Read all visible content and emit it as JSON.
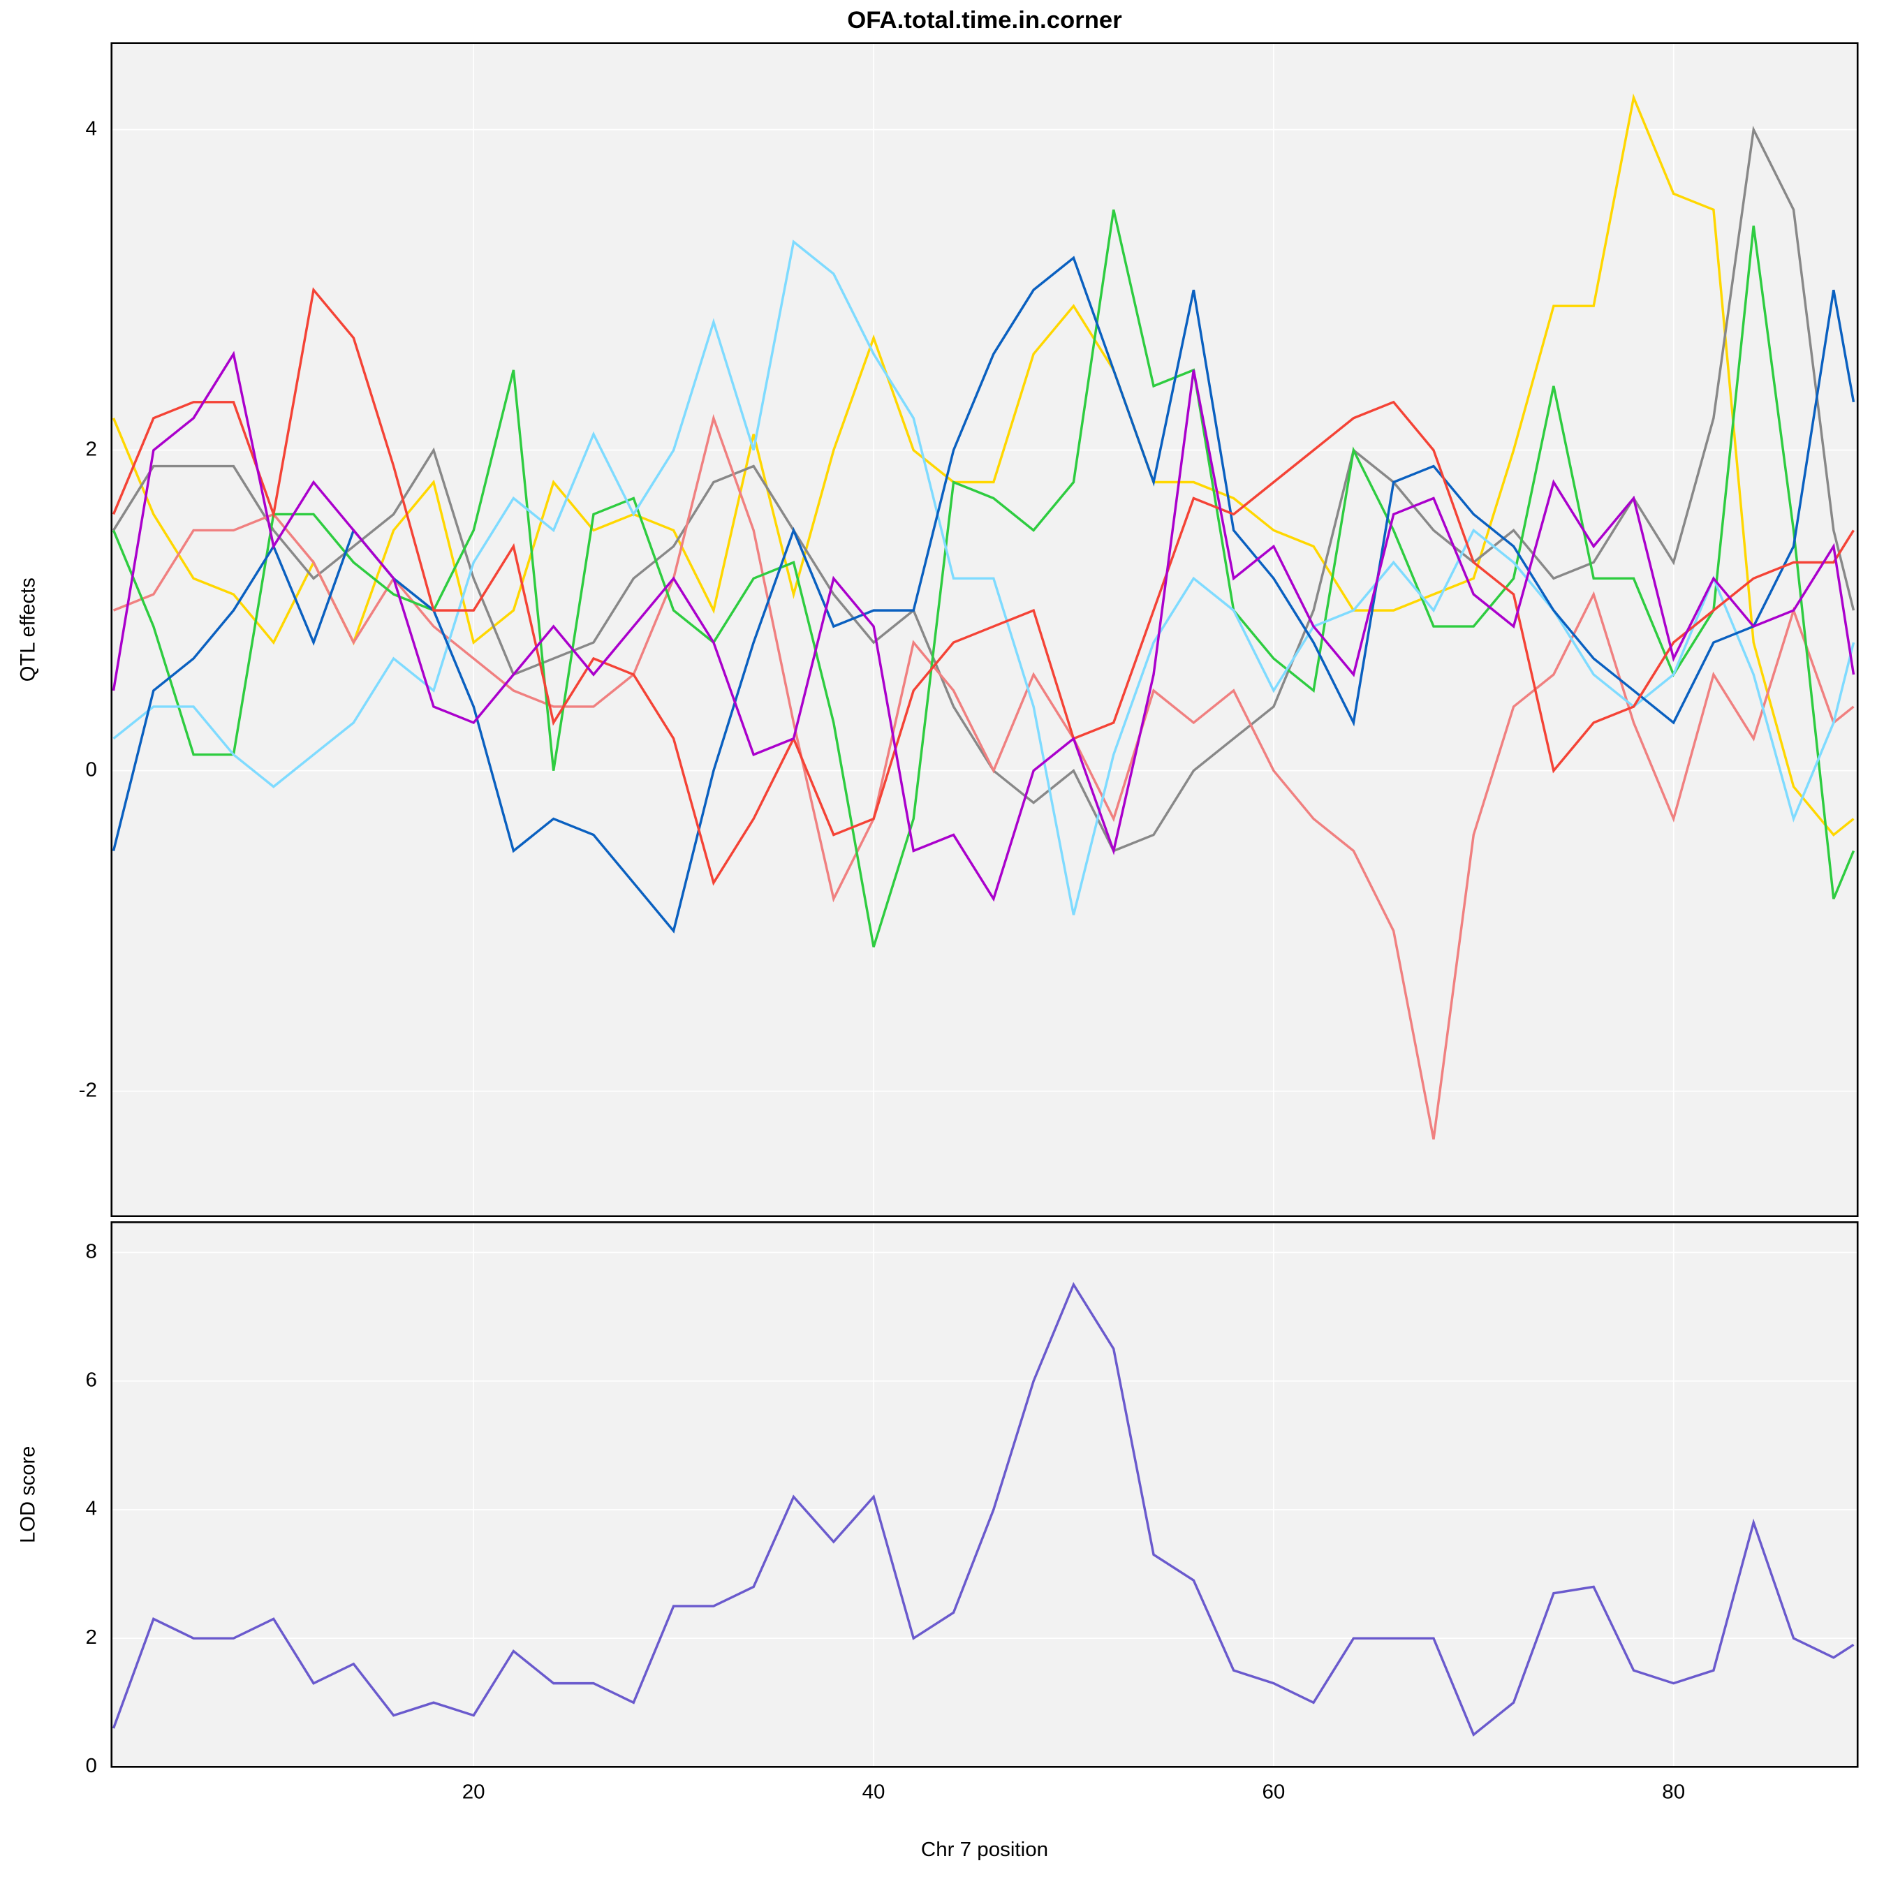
{
  "chart_data": [
    {
      "type": "line",
      "title": "OFA.total.time.in.corner",
      "y_label": "QTL effects",
      "x": [
        2,
        4,
        6,
        8,
        10,
        12,
        14,
        16,
        18,
        20,
        22,
        24,
        26,
        28,
        30,
        32,
        34,
        36,
        38,
        40,
        42,
        44,
        46,
        48,
        50,
        52,
        54,
        56,
        58,
        60,
        62,
        64,
        66,
        68,
        70,
        72,
        74,
        76,
        78,
        80,
        82,
        84,
        86,
        88,
        89
      ],
      "series": [
        {
          "color": "#ffd700",
          "values": [
            2.2,
            1.6,
            1.2,
            1.1,
            0.8,
            1.3,
            0.8,
            1.5,
            1.8,
            0.8,
            1.0,
            1.8,
            1.5,
            1.6,
            1.5,
            1.0,
            2.1,
            1.1,
            2.0,
            2.7,
            2.0,
            1.8,
            1.8,
            2.6,
            2.9,
            2.5,
            1.8,
            1.8,
            1.7,
            1.5,
            1.4,
            1.0,
            1.0,
            1.1,
            1.2,
            2.0,
            2.9,
            2.9,
            4.2,
            3.6,
            3.5,
            0.8,
            -0.1,
            -0.4,
            -0.3
          ]
        },
        {
          "color": "#888888",
          "values": [
            1.5,
            1.9,
            1.9,
            1.9,
            1.5,
            1.2,
            1.4,
            1.6,
            2.0,
            1.2,
            0.6,
            0.7,
            0.8,
            1.2,
            1.4,
            1.8,
            1.9,
            1.5,
            1.1,
            0.8,
            1.0,
            0.4,
            0.0,
            -0.2,
            0.0,
            -0.5,
            -0.4,
            0.0,
            0.2,
            0.4,
            1.0,
            2.0,
            1.8,
            1.5,
            1.3,
            1.5,
            1.2,
            1.3,
            1.7,
            1.3,
            2.2,
            4.0,
            3.5,
            1.5,
            1.0
          ]
        },
        {
          "color": "#f08080",
          "values": [
            1.0,
            1.1,
            1.5,
            1.5,
            1.6,
            1.3,
            0.8,
            1.2,
            0.9,
            0.7,
            0.5,
            0.4,
            0.4,
            0.6,
            1.2,
            2.2,
            1.5,
            0.3,
            -0.8,
            -0.3,
            0.8,
            0.5,
            0.0,
            0.6,
            0.2,
            -0.3,
            0.5,
            0.3,
            0.5,
            0.0,
            -0.3,
            -0.5,
            -1.0,
            -2.3,
            -0.4,
            0.4,
            0.6,
            1.1,
            0.3,
            -0.3,
            0.6,
            0.2,
            1.0,
            0.3,
            0.4
          ]
        },
        {
          "color": "#2ecc40",
          "values": [
            1.5,
            0.9,
            0.1,
            0.1,
            1.6,
            1.6,
            1.3,
            1.1,
            1.0,
            1.5,
            2.5,
            0.0,
            1.6,
            1.7,
            1.0,
            0.8,
            1.2,
            1.3,
            0.3,
            -1.1,
            -0.3,
            1.8,
            1.7,
            1.5,
            1.8,
            3.5,
            2.4,
            2.5,
            1.0,
            0.7,
            0.5,
            2.0,
            1.5,
            0.9,
            0.9,
            1.2,
            2.4,
            1.2,
            1.2,
            0.6,
            1.0,
            3.4,
            1.5,
            -0.8,
            -0.5
          ]
        },
        {
          "color": "#7fdbff",
          "values": [
            0.2,
            0.4,
            0.4,
            0.1,
            -0.1,
            0.1,
            0.3,
            0.7,
            0.5,
            1.3,
            1.7,
            1.5,
            2.1,
            1.6,
            2.0,
            2.8,
            2.0,
            3.3,
            3.1,
            2.6,
            2.2,
            1.2,
            1.2,
            0.4,
            -0.9,
            0.1,
            0.8,
            1.2,
            1.0,
            0.5,
            0.9,
            1.0,
            1.3,
            1.0,
            1.5,
            1.3,
            1.0,
            0.6,
            0.4,
            0.6,
            1.2,
            0.6,
            -0.3,
            0.3,
            0.8
          ]
        },
        {
          "color": "#0a60c0",
          "values": [
            -0.5,
            0.5,
            0.7,
            1.0,
            1.4,
            0.8,
            1.5,
            1.2,
            1.0,
            0.4,
            -0.5,
            -0.3,
            -0.4,
            -0.7,
            -1.0,
            0.0,
            0.8,
            1.5,
            0.9,
            1.0,
            1.0,
            2.0,
            2.6,
            3.0,
            3.2,
            2.5,
            1.8,
            3.0,
            1.5,
            1.2,
            0.8,
            0.3,
            1.8,
            1.9,
            1.6,
            1.4,
            1.0,
            0.7,
            0.5,
            0.3,
            0.8,
            0.9,
            1.4,
            3.0,
            2.3
          ]
        },
        {
          "color": "#f44336",
          "values": [
            1.6,
            2.2,
            2.3,
            2.3,
            1.6,
            3.0,
            2.7,
            1.9,
            1.0,
            1.0,
            1.4,
            0.3,
            0.7,
            0.6,
            0.2,
            -0.7,
            -0.3,
            0.2,
            -0.4,
            -0.3,
            0.5,
            0.8,
            0.9,
            1.0,
            0.2,
            0.3,
            1.0,
            1.7,
            1.6,
            1.8,
            2.0,
            2.2,
            2.3,
            2.0,
            1.3,
            1.1,
            0.0,
            0.3,
            0.4,
            0.8,
            1.0,
            1.2,
            1.3,
            1.3,
            1.5
          ]
        },
        {
          "color": "#aa00cc",
          "values": [
            0.5,
            2.0,
            2.2,
            2.6,
            1.4,
            1.8,
            1.5,
            1.2,
            0.4,
            0.3,
            0.6,
            0.9,
            0.6,
            0.9,
            1.2,
            0.8,
            0.1,
            0.2,
            1.2,
            0.9,
            -0.5,
            -0.4,
            -0.8,
            0.0,
            0.2,
            -0.5,
            0.6,
            2.5,
            1.2,
            1.4,
            0.9,
            0.6,
            1.6,
            1.7,
            1.1,
            0.9,
            1.8,
            1.4,
            1.7,
            0.7,
            1.2,
            0.9,
            1.0,
            1.4,
            0.6
          ]
        }
      ],
      "xlim": [
        1.9,
        89.2
      ],
      "ylim": [
        -2.78,
        4.54
      ],
      "xticks": [
        20,
        40,
        60,
        80
      ],
      "yticks": [
        -2,
        0,
        2,
        4
      ],
      "grid": true
    },
    {
      "type": "line",
      "y_label": "LOD score",
      "x_label": "Chr 7 position",
      "x": [
        2,
        4,
        6,
        8,
        10,
        12,
        14,
        16,
        18,
        20,
        22,
        24,
        26,
        28,
        30,
        32,
        34,
        36,
        38,
        40,
        42,
        44,
        46,
        48,
        50,
        52,
        54,
        56,
        58,
        60,
        62,
        64,
        66,
        68,
        70,
        72,
        74,
        76,
        78,
        80,
        82,
        84,
        86,
        88,
        89
      ],
      "series": [
        {
          "color": "#6a5acd",
          "values": [
            0.6,
            2.3,
            2.0,
            2.0,
            2.3,
            1.3,
            1.6,
            0.8,
            1.0,
            0.8,
            1.8,
            1.3,
            1.3,
            1.0,
            2.5,
            2.5,
            2.8,
            4.2,
            3.5,
            4.2,
            2.0,
            2.4,
            4.0,
            6.0,
            7.5,
            6.5,
            3.3,
            2.9,
            1.5,
            1.3,
            1.0,
            2.0,
            2.0,
            2.0,
            0.5,
            1.0,
            2.7,
            2.8,
            1.5,
            1.3,
            1.5,
            3.8,
            2.0,
            1.7,
            1.9
          ]
        }
      ],
      "xlim": [
        1.9,
        89.2
      ],
      "ylim": [
        0,
        8.47
      ],
      "xticks": [
        20,
        40,
        60,
        80
      ],
      "yticks": [
        0,
        2,
        4,
        6,
        8
      ],
      "grid": true
    }
  ]
}
